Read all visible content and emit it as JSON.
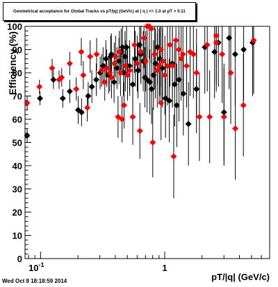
{
  "chart_data": {
    "type": "scatter",
    "title": "Geometrical acceptance for Global Tracks vs pT/|q| (GeV/c) at | η | <= 1.0 at pT > 0.11",
    "xlabel": "pT/|q| (GeV/c)",
    "ylabel": "Efficiency (%)",
    "x_scale": "log",
    "xlim": [
      0.075,
      7.0
    ],
    "ylim": [
      0,
      100
    ],
    "x_tick_labels": [
      "10^{-1}",
      "1"
    ],
    "y_tick_labels": [
      "0",
      "10",
      "20",
      "30",
      "40",
      "50",
      "60",
      "70",
      "80",
      "90",
      "100"
    ],
    "grid": false,
    "colors": {
      "black_series": "#000000",
      "red_series": "#ff0000"
    },
    "series": [
      {
        "name": "",
        "color": "#000000",
        "points": [
          {
            "x": 0.078,
            "y": 53,
            "err": 3
          },
          {
            "x": 0.099,
            "y": 69,
            "err": 3
          },
          {
            "x": 0.127,
            "y": 77,
            "err": 4
          },
          {
            "x": 0.151,
            "y": 69,
            "err": 4
          },
          {
            "x": 0.172,
            "y": 72,
            "err": 5
          },
          {
            "x": 0.201,
            "y": 64,
            "err": 6
          },
          {
            "x": 0.214,
            "y": 63,
            "err": 6
          },
          {
            "x": 0.242,
            "y": 70,
            "err": 6
          },
          {
            "x": 0.259,
            "y": 74,
            "err": 7
          },
          {
            "x": 0.281,
            "y": 77,
            "err": 7
          },
          {
            "x": 0.302,
            "y": 80,
            "err": 7
          },
          {
            "x": 0.319,
            "y": 83,
            "err": 8
          },
          {
            "x": 0.336,
            "y": 86,
            "err": 8
          },
          {
            "x": 0.353,
            "y": 79,
            "err": 8
          },
          {
            "x": 0.372,
            "y": 88,
            "err": 9
          },
          {
            "x": 0.391,
            "y": 76,
            "err": 9
          },
          {
            "x": 0.413,
            "y": 82,
            "err": 9
          },
          {
            "x": 0.428,
            "y": 85,
            "err": 10
          },
          {
            "x": 0.446,
            "y": 89,
            "err": 10
          },
          {
            "x": 0.465,
            "y": 80,
            "err": 10
          },
          {
            "x": 0.479,
            "y": 87,
            "err": 11
          },
          {
            "x": 0.493,
            "y": 91,
            "err": 11
          },
          {
            "x": 0.521,
            "y": 83,
            "err": 11
          },
          {
            "x": 0.553,
            "y": 75,
            "err": 12
          },
          {
            "x": 0.579,
            "y": 86,
            "err": 12
          },
          {
            "x": 0.609,
            "y": 81,
            "err": 12
          },
          {
            "x": 0.643,
            "y": 88,
            "err": 13
          },
          {
            "x": 0.671,
            "y": 85,
            "err": 13
          },
          {
            "x": 0.693,
            "y": 78,
            "err": 13
          },
          {
            "x": 0.721,
            "y": 77,
            "err": 14
          },
          {
            "x": 0.759,
            "y": 76,
            "err": 14
          },
          {
            "x": 0.784,
            "y": 73,
            "err": 15
          },
          {
            "x": 0.812,
            "y": 79,
            "err": 15
          },
          {
            "x": 0.842,
            "y": 84,
            "err": 15
          },
          {
            "x": 0.874,
            "y": 91,
            "err": 16
          },
          {
            "x": 0.912,
            "y": 86,
            "err": 16
          },
          {
            "x": 0.958,
            "y": 82,
            "err": 17
          },
          {
            "x": 1.015,
            "y": 69,
            "err": 17
          },
          {
            "x": 1.089,
            "y": 68,
            "err": 18
          },
          {
            "x": 1.152,
            "y": 84,
            "err": 18
          },
          {
            "x": 1.251,
            "y": 66,
            "err": 18
          },
          {
            "x": 1.303,
            "y": 77,
            "err": 18
          },
          {
            "x": 1.413,
            "y": 71,
            "err": 18
          },
          {
            "x": 1.553,
            "y": 58,
            "err": 18
          },
          {
            "x": 1.801,
            "y": 73,
            "err": 19
          },
          {
            "x": 2.104,
            "y": 91,
            "err": 20
          },
          {
            "x": 2.518,
            "y": 89,
            "err": 20
          },
          {
            "x": 3.001,
            "y": 63,
            "err": 21
          },
          {
            "x": 3.301,
            "y": 95,
            "err": 22
          },
          {
            "x": 3.693,
            "y": 88,
            "err": 22
          },
          {
            "x": 4.321,
            "y": 90,
            "err": 22
          },
          {
            "x": 5.103,
            "y": 93,
            "err": 23
          },
          {
            "x": 2.706,
            "y": 93,
            "err": 19
          },
          {
            "x": 0.367,
            "y": 87,
            "err": 9
          },
          {
            "x": 0.457,
            "y": 91,
            "err": 10
          },
          {
            "x": 0.627,
            "y": 92,
            "err": 12
          },
          {
            "x": 1.203,
            "y": 75,
            "err": 18
          }
        ]
      },
      {
        "name": "",
        "color": "#ff0000",
        "points": [
          {
            "x": 0.078,
            "y": 67,
            "err": 3
          },
          {
            "x": 0.098,
            "y": 74,
            "err": 3
          },
          {
            "x": 0.124,
            "y": 82,
            "err": 4
          },
          {
            "x": 0.141,
            "y": 77,
            "err": 4
          },
          {
            "x": 0.148,
            "y": 78,
            "err": 4
          },
          {
            "x": 0.172,
            "y": 84,
            "err": 5
          },
          {
            "x": 0.194,
            "y": 73,
            "err": 5
          },
          {
            "x": 0.213,
            "y": 89,
            "err": 6
          },
          {
            "x": 0.221,
            "y": 79,
            "err": 6
          },
          {
            "x": 0.238,
            "y": 65,
            "err": 6
          },
          {
            "x": 0.251,
            "y": 87,
            "err": 7
          },
          {
            "x": 0.283,
            "y": 88,
            "err": 7
          },
          {
            "x": 0.311,
            "y": 81,
            "err": 7
          },
          {
            "x": 0.329,
            "y": 76,
            "err": 8
          },
          {
            "x": 0.341,
            "y": 82,
            "err": 8
          },
          {
            "x": 0.361,
            "y": 80,
            "err": 8
          },
          {
            "x": 0.373,
            "y": 78,
            "err": 9
          },
          {
            "x": 0.392,
            "y": 84,
            "err": 9
          },
          {
            "x": 0.402,
            "y": 87,
            "err": 9
          },
          {
            "x": 0.421,
            "y": 61,
            "err": 9
          },
          {
            "x": 0.441,
            "y": 80,
            "err": 10
          },
          {
            "x": 0.453,
            "y": 60,
            "err": 10
          },
          {
            "x": 0.471,
            "y": 66,
            "err": 10
          },
          {
            "x": 0.482,
            "y": 83,
            "err": 11
          },
          {
            "x": 0.502,
            "y": 79,
            "err": 11
          },
          {
            "x": 0.523,
            "y": 81,
            "err": 11
          },
          {
            "x": 0.553,
            "y": 61,
            "err": 12
          },
          {
            "x": 0.571,
            "y": 92,
            "err": 12
          },
          {
            "x": 0.601,
            "y": 84,
            "err": 12
          },
          {
            "x": 0.631,
            "y": 55,
            "err": 12
          },
          {
            "x": 0.642,
            "y": 89,
            "err": 13
          },
          {
            "x": 0.681,
            "y": 95,
            "err": 13
          },
          {
            "x": 0.703,
            "y": 85,
            "err": 13
          },
          {
            "x": 0.721,
            "y": 100,
            "err": 14
          },
          {
            "x": 0.751,
            "y": 100,
            "err": 14
          },
          {
            "x": 0.781,
            "y": 99,
            "err": 15
          },
          {
            "x": 0.801,
            "y": 50,
            "err": 15
          },
          {
            "x": 0.831,
            "y": 88,
            "err": 15
          },
          {
            "x": 0.871,
            "y": 81,
            "err": 16
          },
          {
            "x": 0.903,
            "y": 83,
            "err": 16
          },
          {
            "x": 0.934,
            "y": 67,
            "err": 16
          },
          {
            "x": 0.962,
            "y": 85,
            "err": 17
          },
          {
            "x": 1.004,
            "y": 79,
            "err": 17
          },
          {
            "x": 1.051,
            "y": 83,
            "err": 17
          },
          {
            "x": 1.101,
            "y": 92,
            "err": 18
          },
          {
            "x": 1.182,
            "y": 44,
            "err": 18
          },
          {
            "x": 1.231,
            "y": 94,
            "err": 18
          },
          {
            "x": 1.301,
            "y": 90,
            "err": 18
          },
          {
            "x": 1.402,
            "y": 88,
            "err": 18
          },
          {
            "x": 1.501,
            "y": 83,
            "err": 18
          },
          {
            "x": 1.601,
            "y": 89,
            "err": 19
          },
          {
            "x": 1.803,
            "y": 80,
            "err": 19
          },
          {
            "x": 1.902,
            "y": 61,
            "err": 19
          },
          {
            "x": 2.201,
            "y": 92,
            "err": 20
          },
          {
            "x": 2.302,
            "y": 61,
            "err": 20
          },
          {
            "x": 2.601,
            "y": 96,
            "err": 21
          },
          {
            "x": 3.002,
            "y": 61,
            "err": 21
          },
          {
            "x": 3.401,
            "y": 80,
            "err": 22
          },
          {
            "x": 3.703,
            "y": 56,
            "err": 22
          },
          {
            "x": 4.301,
            "y": 66,
            "err": 22
          },
          {
            "x": 5.203,
            "y": 94,
            "err": 23
          },
          {
            "x": 0.932,
            "y": 90,
            "err": 16
          },
          {
            "x": 1.355,
            "y": 86,
            "err": 18
          },
          {
            "x": 1.154,
            "y": 83,
            "err": 18
          },
          {
            "x": 2.603,
            "y": 93,
            "err": 21
          },
          {
            "x": 2.901,
            "y": 88,
            "err": 21
          },
          {
            "x": 1.702,
            "y": 88,
            "err": 19
          },
          {
            "x": 0.431,
            "y": 89,
            "err": 9
          }
        ]
      }
    ]
  },
  "footer": {
    "timestamp": "Wed Oct  8 18:18:59 2014"
  }
}
